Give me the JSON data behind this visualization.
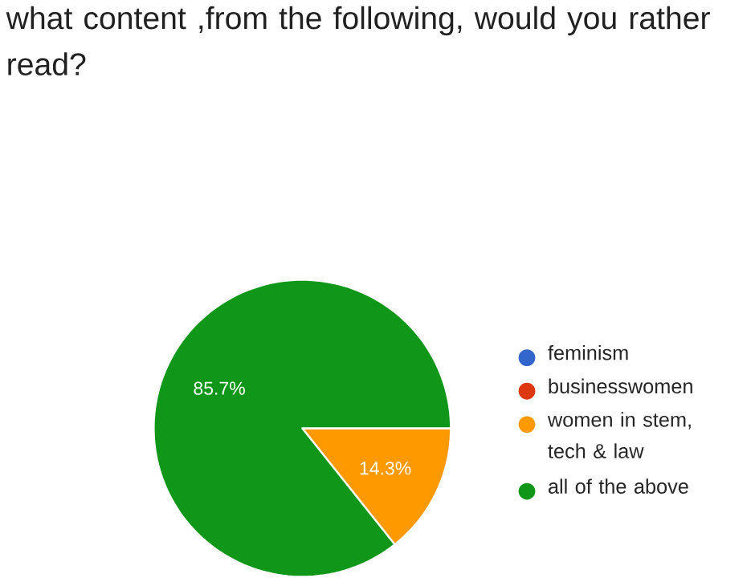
{
  "chart_data": {
    "type": "pie",
    "title": "what content ,from the following, would you rather read?",
    "categories": [
      "feminism",
      "businesswomen",
      "women in stem, tech & law",
      "all of the above"
    ],
    "values": [
      0,
      0,
      14.3,
      85.7
    ],
    "value_labels": [
      null,
      null,
      "14.3%",
      "85.7%"
    ],
    "colors": [
      "#3366cc",
      "#dc3912",
      "#ff9900",
      "#109618"
    ],
    "legend": "right"
  }
}
